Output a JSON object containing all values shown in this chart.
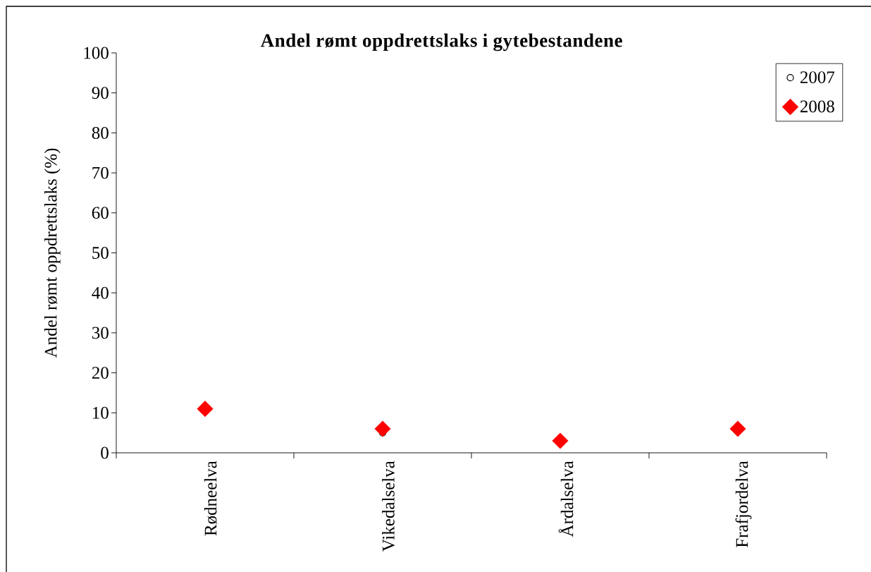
{
  "chart_data": {
    "type": "scatter",
    "title": "Andel rømt oppdrettslaks i gytebestandene",
    "ylabel": "Andel rømt oppdrettslaks (%)",
    "categories": [
      "Rødneelva",
      "Vikedalselva",
      "Årdalselva",
      "Frafjordelva"
    ],
    "series": [
      {
        "name": "2007",
        "color": "#000000",
        "marker": "circle",
        "values": [
          null,
          5,
          null,
          null
        ]
      },
      {
        "name": "2008",
        "color": "#ff0000",
        "marker": "diamond",
        "values": [
          11,
          6,
          3,
          6
        ]
      }
    ],
    "ylim": [
      0,
      100
    ],
    "yticks": [
      0,
      10,
      20,
      30,
      40,
      50,
      60,
      70,
      80,
      90,
      100
    ],
    "legend": "top right"
  }
}
